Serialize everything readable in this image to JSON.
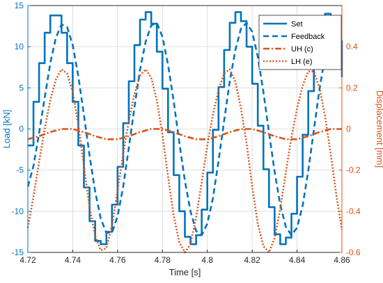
{
  "colors": {
    "left_axis": "#0072BD",
    "right_axis": "#D95319",
    "grid": "#dfdfdf",
    "frame": "#262626"
  },
  "chart_data": {
    "type": "line",
    "xlabel": "Time [s]",
    "ylabel_left": "Load [kN]",
    "ylabel_right": "Displacement [mm]",
    "xlim": [
      4.72,
      4.86
    ],
    "ylim_left": [
      -15,
      15
    ],
    "ylim_right": [
      -0.6,
      0.6
    ],
    "grid": true,
    "legend_position": "top-right",
    "x_ticks": [
      4.72,
      4.74,
      4.76,
      4.78,
      4.8,
      4.82,
      4.84,
      4.86
    ],
    "x_tick_labels": [
      "4.72",
      "4.74",
      "4.76",
      "4.78",
      "4.8",
      "4.82",
      "4.84",
      "4.86"
    ],
    "left_ticks": [
      -15,
      -10,
      -5,
      0,
      5,
      10,
      15
    ],
    "left_tick_labels": [
      "-15",
      "-10",
      "-5",
      "0",
      "5",
      "10",
      "15"
    ],
    "right_ticks": [
      -0.6,
      -0.4,
      -0.2,
      0,
      0.2,
      0.4
    ],
    "right_tick_labels": [
      "-0.6",
      "-0.4",
      "-0.2",
      "0",
      "0.2",
      "0.4"
    ],
    "series": [
      {
        "name": "Set",
        "axis": "left",
        "style": "solid",
        "color": "#0072BD",
        "x": [
          4.72,
          4.7225,
          4.725,
          4.7275,
          4.73,
          4.7325,
          4.735,
          4.7375,
          4.74,
          4.7425,
          4.745,
          4.7475,
          4.75,
          4.7525,
          4.755,
          4.7575,
          4.76,
          4.7625,
          4.765,
          4.7675,
          4.77,
          4.7725,
          4.775,
          4.7775,
          4.78,
          4.7825,
          4.785,
          4.7875,
          4.79,
          4.7925,
          4.795,
          4.7975,
          4.8,
          4.8025,
          4.805,
          4.8075,
          4.81,
          4.8125,
          4.815,
          4.8175,
          4.82,
          4.8225,
          4.825,
          4.8275,
          4.83,
          4.8325,
          4.835,
          4.8375,
          4.84,
          4.8425,
          4.845,
          4.8475,
          4.85,
          4.8525,
          4.855,
          4.8575,
          4.86
        ],
        "y": [
          -2,
          3.3,
          8,
          11.7,
          13.8,
          13.8,
          11.7,
          8,
          3.3,
          -2,
          -7.1,
          -11.2,
          -13.6,
          -14,
          -12.5,
          -9.2,
          -4.6,
          0.7,
          5.8,
          10.2,
          13.3,
          14.2,
          12.8,
          9.4,
          4.9,
          -0.4,
          -5.6,
          -10,
          -13.1,
          -14,
          -12.9,
          -9.8,
          -5.3,
          -0.1,
          5.1,
          9.6,
          12.9,
          14.2,
          13.1,
          10,
          5.5,
          0.4,
          -4.9,
          -9.5,
          -12.8,
          -14,
          -13.2,
          -10.3,
          -5.8,
          -0.7,
          4.6,
          9.2,
          12.6,
          14,
          13.4,
          10.7,
          6.3
        ]
      },
      {
        "name": "Feedback",
        "axis": "left",
        "style": "dashed",
        "color": "#0072BD",
        "x": [
          4.72,
          4.7225,
          4.725,
          4.7275,
          4.73,
          4.7325,
          4.735,
          4.7375,
          4.74,
          4.7425,
          4.745,
          4.7475,
          4.75,
          4.7525,
          4.755,
          4.7575,
          4.76,
          4.7625,
          4.765,
          4.7675,
          4.77,
          4.7725,
          4.775,
          4.7775,
          4.78,
          4.7825,
          4.785,
          4.7875,
          4.79,
          4.7925,
          4.795,
          4.7975,
          4.8,
          4.8025,
          4.805,
          4.8075,
          4.81,
          4.8125,
          4.815,
          4.8175,
          4.82,
          4.8225,
          4.825,
          4.8275,
          4.83,
          4.8325,
          4.835,
          4.8375,
          4.84,
          4.8425,
          4.845,
          4.8475,
          4.85,
          4.8525,
          4.855,
          4.8575,
          4.86
        ],
        "y": [
          -7,
          -4.5,
          -0.5,
          3.8,
          8,
          11.1,
          12.7,
          12.4,
          10.2,
          6.4,
          1.7,
          -3.2,
          -7.6,
          -10.9,
          -12.6,
          -12.6,
          -10.6,
          -7,
          -2.3,
          2.6,
          7.2,
          10.6,
          12.6,
          12.9,
          11.2,
          7.8,
          3.4,
          -1.6,
          -6.3,
          -10,
          -12.4,
          -12.9,
          -11.5,
          -8.4,
          -3.9,
          1,
          5.8,
          9.6,
          12.2,
          12.9,
          11.8,
          8.8,
          4.5,
          -0.4,
          -5.2,
          -9.2,
          -11.9,
          -12.9,
          -12,
          -9.3,
          -5.1,
          -0.1,
          4.8,
          8.9,
          11.7,
          12.9,
          12.2
        ]
      },
      {
        "name": "UH (c)",
        "axis": "right",
        "style": "dashdot",
        "color": "#D95319",
        "x": [
          4.72,
          4.725,
          4.73,
          4.735,
          4.74,
          4.745,
          4.75,
          4.755,
          4.76,
          4.765,
          4.77,
          4.775,
          4.78,
          4.785,
          4.79,
          4.795,
          4.8,
          4.805,
          4.81,
          4.815,
          4.82,
          4.825,
          4.83,
          4.835,
          4.84,
          4.845,
          4.85,
          4.855,
          4.86
        ],
        "y": [
          -0.05,
          -0.035,
          -0.015,
          0,
          0,
          -0.015,
          -0.035,
          -0.05,
          -0.05,
          -0.035,
          -0.015,
          0,
          0,
          -0.015,
          -0.035,
          -0.05,
          -0.05,
          -0.035,
          -0.015,
          0,
          0,
          -0.015,
          -0.035,
          -0.05,
          -0.05,
          -0.035,
          -0.015,
          0,
          0
        ]
      },
      {
        "name": "LH (e)",
        "axis": "right",
        "style": "dotted",
        "color": "#D95319",
        "x": [
          4.72,
          4.7225,
          4.725,
          4.7275,
          4.73,
          4.7325,
          4.735,
          4.7375,
          4.74,
          4.7425,
          4.745,
          4.7475,
          4.75,
          4.7525,
          4.755,
          4.7575,
          4.76,
          4.7625,
          4.765,
          4.7675,
          4.77,
          4.7725,
          4.775,
          4.7775,
          4.78,
          4.7825,
          4.785,
          4.7875,
          4.79,
          4.7925,
          4.795,
          4.7975,
          4.8,
          4.8025,
          4.805,
          4.8075,
          4.81,
          4.8125,
          4.815,
          4.8175,
          4.82,
          4.8225,
          4.825,
          4.8275,
          4.83,
          4.8325,
          4.835,
          4.8375,
          4.84,
          4.8425,
          4.845,
          4.8475,
          4.85,
          4.8525,
          4.855,
          4.8575,
          4.86
        ],
        "y": [
          -0.48,
          -0.33,
          -0.16,
          0,
          0.14,
          0.24,
          0.29,
          0.27,
          0.18,
          0.02,
          -0.18,
          -0.38,
          -0.52,
          -0.59,
          -0.58,
          -0.47,
          -0.3,
          -0.12,
          0.04,
          0.17,
          0.26,
          0.29,
          0.25,
          0.14,
          -0.03,
          -0.23,
          -0.42,
          -0.55,
          -0.6,
          -0.56,
          -0.43,
          -0.26,
          -0.08,
          0.07,
          0.19,
          0.27,
          0.29,
          0.23,
          0.1,
          -0.07,
          -0.28,
          -0.46,
          -0.57,
          -0.6,
          -0.53,
          -0.39,
          -0.21,
          -0.04,
          0.1,
          0.21,
          0.28,
          0.28,
          0.2,
          0.06,
          -0.12,
          -0.32,
          -0.49
        ]
      }
    ]
  }
}
